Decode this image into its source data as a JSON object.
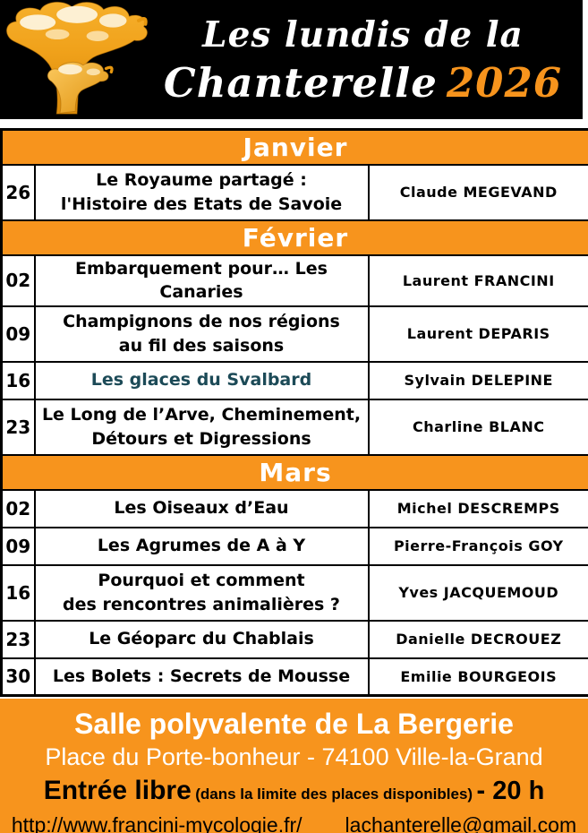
{
  "colors": {
    "accent_orange": "#F7941D",
    "header_background": "#000000",
    "special_title_teal": "#1C4A57"
  },
  "header": {
    "logo_icon": "chanterelle-mushroom-icon",
    "title_line1": "Les lundis de la",
    "title_line2": "Chanterelle",
    "year": "2026"
  },
  "schedule": [
    {
      "month": "Janvier",
      "events": [
        {
          "date": "26",
          "title_lines": [
            "Le Royaume partagé :",
            "l'Histoire des Etats de Savoie"
          ],
          "speaker": "Claude MEGEVAND"
        }
      ]
    },
    {
      "month": "Février",
      "events": [
        {
          "date": "02",
          "title_lines": [
            "Embarquement pour… Les Canaries"
          ],
          "speaker": "Laurent FRANCINI"
        },
        {
          "date": "09",
          "title_lines": [
            "Champignons de nos régions",
            "au fil des saisons"
          ],
          "speaker": "Laurent DEPARIS"
        },
        {
          "date": "16",
          "title_lines": [
            "Les glaces du Svalbard"
          ],
          "speaker": "Sylvain DELEPINE",
          "title_color": "teal"
        },
        {
          "date": "23",
          "title_lines": [
            "Le Long de l’Arve, Cheminement,",
            "Détours et Digressions"
          ],
          "speaker": "Charline BLANC"
        }
      ]
    },
    {
      "month": "Mars",
      "events": [
        {
          "date": "02",
          "title_lines": [
            "Les Oiseaux d’Eau"
          ],
          "speaker": "Michel DESCREMPS"
        },
        {
          "date": "09",
          "title_lines": [
            "Les Agrumes de A à Y"
          ],
          "speaker": "Pierre-François GOY"
        },
        {
          "date": "16",
          "title_lines": [
            "Pourquoi et comment",
            "des rencontres animalières ?"
          ],
          "speaker": "Yves JACQUEMOUD"
        },
        {
          "date": "23",
          "title_lines": [
            "Le Géoparc du Chablais"
          ],
          "speaker": "Danielle DECROUEZ"
        },
        {
          "date": "30",
          "title_lines": [
            "Les Bolets : Secrets de Mousse"
          ],
          "speaker": "Emilie BOURGEOIS"
        }
      ]
    }
  ],
  "footer": {
    "venue": "Salle polyvalente de La Bergerie",
    "address": "Place du Porte-bonheur - 74100 Ville-la-Grand",
    "entry_label": "Entrée libre",
    "entry_note": "(dans la limite des places disponibles)",
    "entry_time": "- 20 h",
    "website": "http://www.francini-mycologie.fr/",
    "email": "lachanterelle@gmail.com"
  }
}
